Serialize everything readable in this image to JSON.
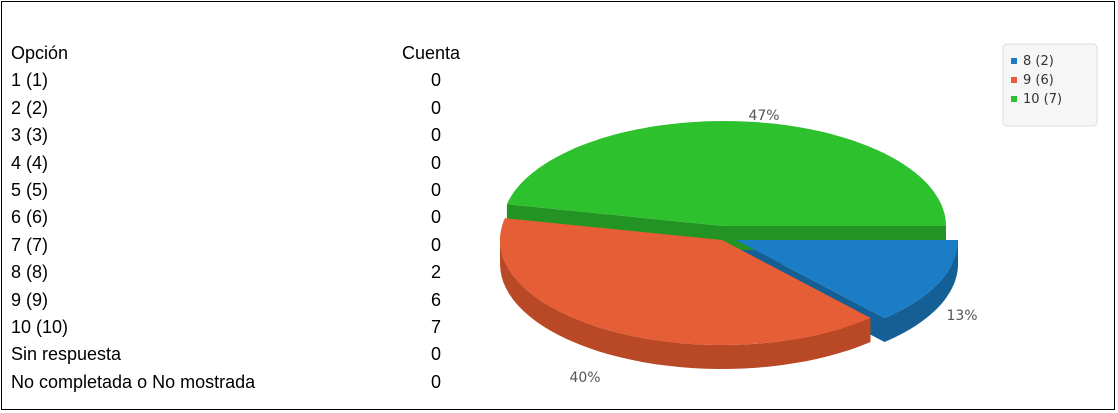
{
  "table": {
    "header": {
      "option": "Opción",
      "count": "Cuenta"
    },
    "rows": [
      {
        "option": "1 (1)",
        "count": "0"
      },
      {
        "option": "2 (2)",
        "count": "0"
      },
      {
        "option": "3 (3)",
        "count": "0"
      },
      {
        "option": "4 (4)",
        "count": "0"
      },
      {
        "option": "5 (5)",
        "count": "0"
      },
      {
        "option": "6 (6)",
        "count": "0"
      },
      {
        "option": "7 (7)",
        "count": "0"
      },
      {
        "option": "8 (8)",
        "count": "2"
      },
      {
        "option": "9 (9)",
        "count": "6"
      },
      {
        "option": "10 (10)",
        "count": "7"
      },
      {
        "option": "Sin respuesta",
        "count": "0"
      },
      {
        "option": "No completada o No mostrada",
        "count": "0"
      }
    ]
  },
  "chart_data": {
    "type": "pie",
    "legend_position": "top-right",
    "slices": [
      {
        "label": "8 (2)",
        "value": 2,
        "percent_label": "13%",
        "color": "#1a7dc6",
        "side_color": "#145f96"
      },
      {
        "label": "9 (6)",
        "value": 6,
        "percent_label": "40%",
        "color": "#e65e35",
        "side_color": "#b84826"
      },
      {
        "label": "10 (7)",
        "value": 7,
        "percent_label": "47%",
        "color": "#2ec12e",
        "side_color": "#239423"
      }
    ]
  }
}
